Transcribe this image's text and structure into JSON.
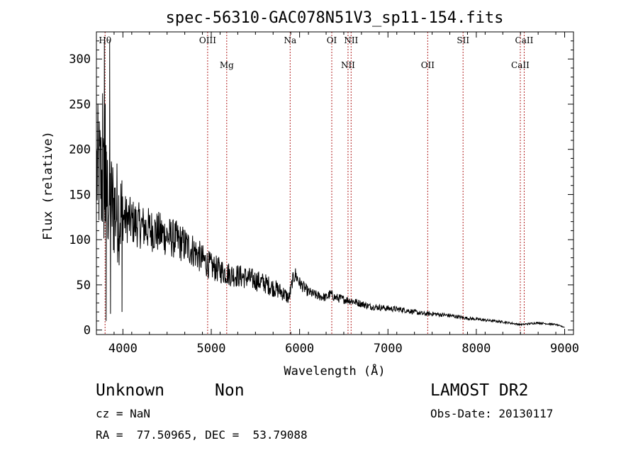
{
  "chart_data": {
    "type": "line",
    "title": "spec-56310-GAC078N51V3_sp11-154.fits",
    "xlabel": "Wavelength (Å)",
    "ylabel": "Flux (relative)",
    "xlim": [
      3700,
      9100
    ],
    "ylim": [
      -5,
      330
    ],
    "xticks": [
      4000,
      5000,
      6000,
      7000,
      8000,
      9000
    ],
    "yticks": [
      0,
      50,
      100,
      150,
      200,
      250,
      300
    ],
    "grid": false,
    "spectrum_anchors": [
      [
        3700,
        175
      ],
      [
        3750,
        170
      ],
      [
        3800,
        150
      ],
      [
        3900,
        135
      ],
      [
        4000,
        125
      ],
      [
        4200,
        115
      ],
      [
        4400,
        108
      ],
      [
        4600,
        100
      ],
      [
        4800,
        88
      ],
      [
        4900,
        78
      ],
      [
        5000,
        70
      ],
      [
        5200,
        62
      ],
      [
        5400,
        58
      ],
      [
        5600,
        52
      ],
      [
        5800,
        42
      ],
      [
        5880,
        35
      ],
      [
        5920,
        55
      ],
      [
        5950,
        62
      ],
      [
        6000,
        52
      ],
      [
        6100,
        42
      ],
      [
        6200,
        38
      ],
      [
        6300,
        36
      ],
      [
        6350,
        40
      ],
      [
        6400,
        36
      ],
      [
        6600,
        32
      ],
      [
        6800,
        26
      ],
      [
        7000,
        24
      ],
      [
        7200,
        22
      ],
      [
        7400,
        18
      ],
      [
        7500,
        18
      ],
      [
        7700,
        16
      ],
      [
        7900,
        13
      ],
      [
        8100,
        11
      ],
      [
        8300,
        9
      ],
      [
        8500,
        6
      ],
      [
        8700,
        8
      ],
      [
        8900,
        6
      ],
      [
        9000,
        3
      ]
    ],
    "spikes": [
      [
        3790,
        318
      ],
      [
        3850,
        320
      ],
      [
        3800,
        250
      ],
      [
        3770,
        262
      ],
      [
        3990,
        20
      ],
      [
        3810,
        10
      ],
      [
        3860,
        18
      ]
    ],
    "emission_lines": [
      {
        "label": "Hθ",
        "wavelength": 3798,
        "row": 0
      },
      {
        "label": "OIII",
        "wavelength": 4959,
        "row": 0
      },
      {
        "label": "Mg",
        "wavelength": 5175,
        "row": 1
      },
      {
        "label": "Na",
        "wavelength": 5893,
        "row": 0
      },
      {
        "label": "OI",
        "wavelength": 6364,
        "row": 0
      },
      {
        "label": "NII",
        "wavelength": 6583,
        "row": 0
      },
      {
        "label": "NII",
        "wavelength": 6548,
        "row": 1
      },
      {
        "label": "OII",
        "wavelength": 7450,
        "row": 1
      },
      {
        "label": "SII",
        "wavelength": 7850,
        "row": 0
      },
      {
        "label": "CaII",
        "wavelength": 8542,
        "row": 0
      },
      {
        "label": "CaII",
        "wavelength": 8498,
        "row": 1
      }
    ],
    "line_color": "#000000",
    "marker_color": "#b22222"
  },
  "info": {
    "class": "Unknown",
    "subclass": "Non",
    "survey": "LAMOST DR2",
    "cz": "cz = NaN",
    "obs_date": "Obs-Date: 20130117",
    "coords": "RA =  77.50965, DEC =  53.79088"
  }
}
